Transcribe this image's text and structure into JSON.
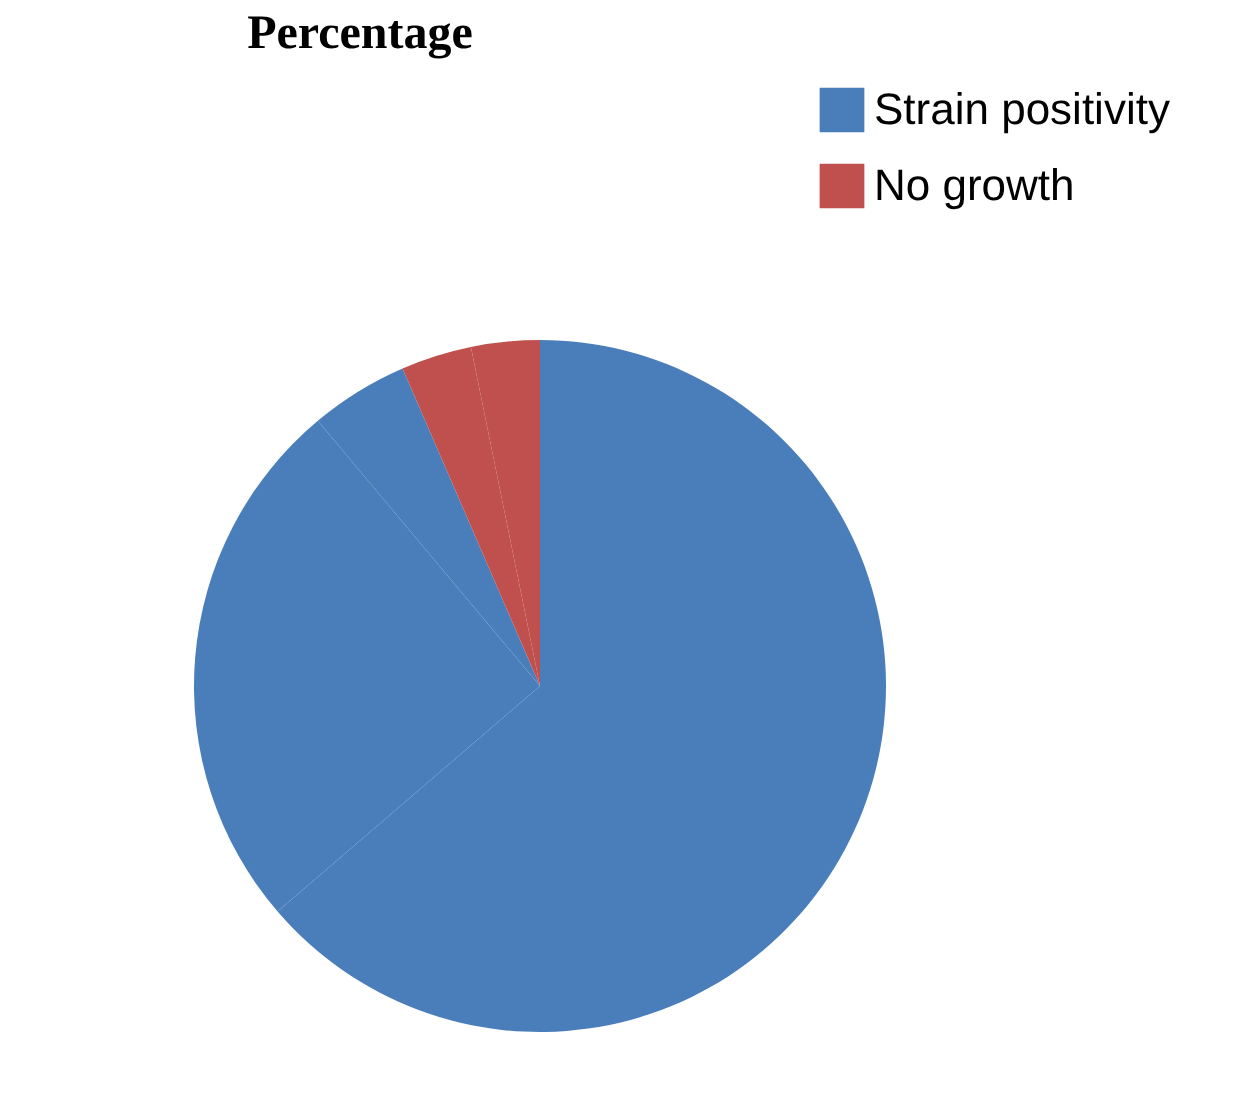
{
  "chart_data": {
    "type": "pie",
    "title": "Percentage",
    "categories": [
      "Strain positivity",
      null,
      null,
      "No growth",
      null
    ],
    "values": [
      63.7,
      25.2,
      4.6,
      3.3,
      3.2
    ],
    "colors": [
      "#4a7ebb",
      "#4a7ebb",
      "#4a7ebb",
      "#c0504d",
      "#c0504d"
    ],
    "legend": "top right"
  }
}
